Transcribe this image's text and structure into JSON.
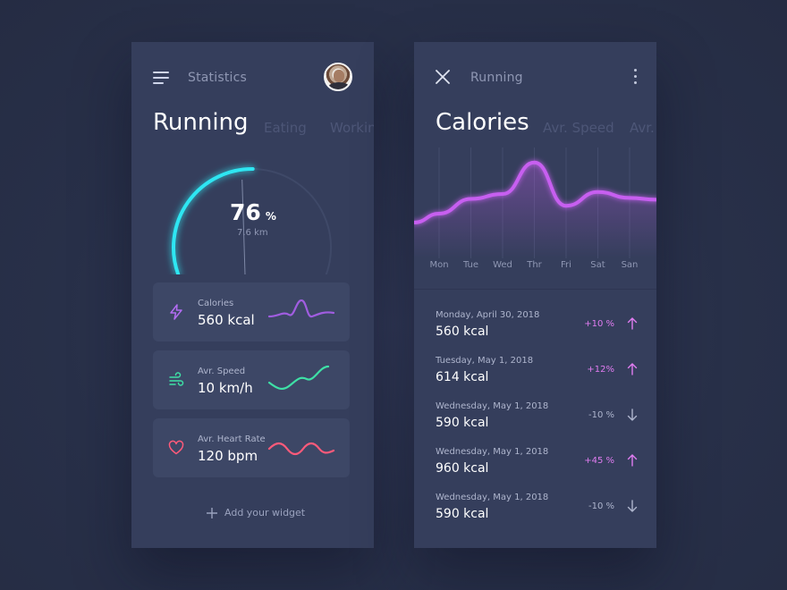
{
  "colors": {
    "accent_cyan": "#2ee6f2",
    "accent_purple": "#c75ff0",
    "accent_green": "#3ee0a6",
    "accent_red": "#ff5a7a",
    "panel_bg": "#353e5c",
    "positive": "#e07cf0",
    "negative": "#aeb5cd"
  },
  "left": {
    "header": {
      "title": "Statistics",
      "menu_icon": "hamburger-menu-icon",
      "avatar": "user-avatar"
    },
    "tabs": [
      {
        "label": "Running",
        "active": true
      },
      {
        "label": "Eating",
        "active": false
      },
      {
        "label": "Workin",
        "active": false
      }
    ],
    "gauge": {
      "value": "76",
      "unit": "%",
      "sub": "7.6 km",
      "progress": 0.76
    },
    "widgets": [
      {
        "label": "Calories",
        "value": "560 kcal",
        "icon": "lightning-icon",
        "color": "#b26cf2"
      },
      {
        "label": "Avr. Speed",
        "value": "10 km/h",
        "icon": "wind-icon",
        "color": "#3ee0a6"
      },
      {
        "label": "Avr. Heart Rate",
        "value": "120 bpm",
        "icon": "heart-icon",
        "color": "#ff5a7a"
      }
    ],
    "add_widget_label": "Add your widget"
  },
  "right": {
    "header": {
      "title": "Running",
      "close_icon": "close-icon",
      "more_icon": "more-vertical-icon"
    },
    "tabs": [
      {
        "label": "Calories",
        "active": true
      },
      {
        "label": "Avr. Speed",
        "active": false
      },
      {
        "label": "Avr.",
        "active": false
      }
    ],
    "chart_data": {
      "type": "line",
      "categories": [
        "Mon",
        "Tue",
        "Wed",
        "Thr",
        "Fri",
        "Sat",
        "San"
      ],
      "values": [
        40,
        55,
        60,
        92,
        48,
        62,
        56
      ],
      "ylim": [
        0,
        100
      ],
      "grid": true,
      "legend": "none"
    },
    "entries": [
      {
        "date": "Monday, April 30, 2018",
        "kcal": "560 kcal",
        "pct": "+10 %",
        "dir": "up"
      },
      {
        "date": "Tuesday, May 1, 2018",
        "kcal": "614 kcal",
        "pct": "+12%",
        "dir": "up"
      },
      {
        "date": "Wednesday, May 1, 2018",
        "kcal": "590 kcal",
        "pct": "-10 %",
        "dir": "down"
      },
      {
        "date": "Wednesday, May 1, 2018",
        "kcal": "960 kcal",
        "pct": "+45 %",
        "dir": "up"
      },
      {
        "date": "Wednesday, May 1, 2018",
        "kcal": "590 kcal",
        "pct": "-10 %",
        "dir": "down"
      }
    ]
  }
}
